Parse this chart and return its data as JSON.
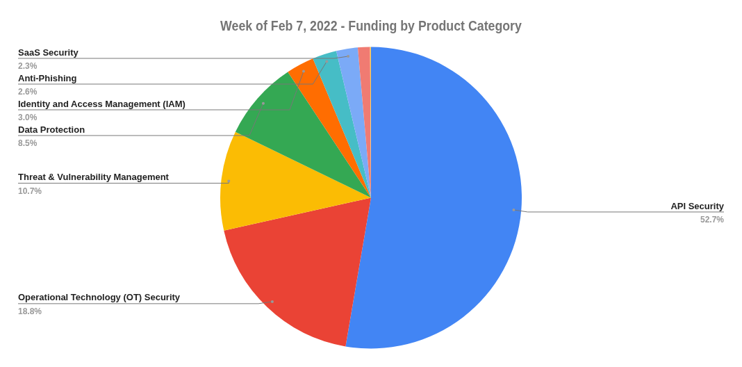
{
  "chart_data": {
    "type": "pie",
    "title": "Week of Feb 7, 2022 - Funding by Product Category",
    "categories": [
      "API Security",
      "Operational Technology (OT) Security",
      "Threat & Vulnerability Management",
      "Data Protection",
      "Identity and Access Management (IAM)",
      "Anti-Phishing",
      "SaaS Security",
      null,
      null
    ],
    "values": [
      52.7,
      18.8,
      10.7,
      8.5,
      3.0,
      2.6,
      2.3,
      1.3,
      0.1
    ],
    "value_labels": [
      "52.7%",
      "18.8%",
      "10.7%",
      "8.5%",
      "3.0%",
      "2.6%",
      "2.3%",
      null,
      null
    ],
    "colors": [
      "#4285f4",
      "#ea4335",
      "#fbbc04",
      "#34a853",
      "#ff6d01",
      "#46bdc6",
      "#7baaf7",
      "#f07b72",
      "#fcd04f"
    ],
    "legend": false
  }
}
